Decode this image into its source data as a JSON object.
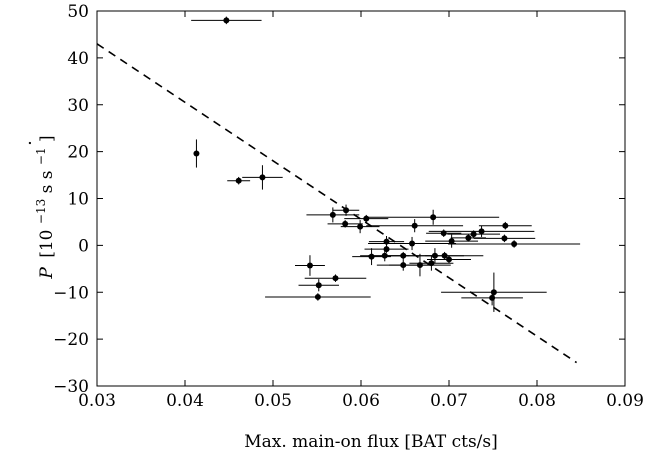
{
  "chart_data": {
    "type": "scatter",
    "title": "",
    "xlabel": "Max. main-on flux [BAT cts/s]",
    "ylabel": {
      "symbol": "P",
      "bracket_open": "[10",
      "exponent": "−13",
      "units": " s s",
      "units_exponent": "−1",
      "bracket_close": "]"
    },
    "xlim": [
      0.03,
      0.09
    ],
    "ylim": [
      -30,
      50
    ],
    "x_ticks": [
      "0.03",
      "0.04",
      "0.05",
      "0.06",
      "0.07",
      "0.08",
      "0.09"
    ],
    "x_tick_values": [
      0.03,
      0.04,
      0.05,
      0.06,
      0.07,
      0.08,
      0.09
    ],
    "y_ticks": [
      "−30",
      "−20",
      "−10",
      "0",
      "10",
      "20",
      "30",
      "40",
      "50"
    ],
    "y_tick_values": [
      -30,
      -20,
      -10,
      0,
      10,
      20,
      30,
      40,
      50
    ],
    "grid": false,
    "fit_line": {
      "style": "dashed",
      "x": [
        0.03,
        0.0845
      ],
      "y": [
        43.0,
        -25.0
      ]
    },
    "points": [
      {
        "x": 0.0447,
        "y": 48.0,
        "xerr": 0.004,
        "yerr": 0.8
      },
      {
        "x": 0.0413,
        "y": 19.6,
        "xerr": 0.0003,
        "yerr": 3.0
      },
      {
        "x": 0.0461,
        "y": 13.8,
        "xerr": 0.0013,
        "yerr": 0.8
      },
      {
        "x": 0.0488,
        "y": 14.5,
        "xerr": 0.0023,
        "yerr": 2.6
      },
      {
        "x": 0.0583,
        "y": 7.5,
        "xerr": 0.0015,
        "yerr": 1.2
      },
      {
        "x": 0.0568,
        "y": 6.5,
        "xerr": 0.003,
        "yerr": 1.6
      },
      {
        "x": 0.0582,
        "y": 4.6,
        "xerr": 0.002,
        "yerr": 0.8
      },
      {
        "x": 0.0599,
        "y": 4.0,
        "xerr": 0.0022,
        "yerr": 1.4
      },
      {
        "x": 0.0606,
        "y": 5.7,
        "xerr": 0.0025,
        "yerr": 0.8
      },
      {
        "x": 0.0682,
        "y": 6.0,
        "xerr": 0.0075,
        "yerr": 1.6
      },
      {
        "x": 0.0661,
        "y": 4.2,
        "xerr": 0.0055,
        "yerr": 1.4
      },
      {
        "x": 0.0764,
        "y": 4.2,
        "xerr": 0.003,
        "yerr": 0.8
      },
      {
        "x": 0.0737,
        "y": 3.0,
        "xerr": 0.006,
        "yerr": 1.2
      },
      {
        "x": 0.0694,
        "y": 2.6,
        "xerr": 0.002,
        "yerr": 0.8
      },
      {
        "x": 0.0728,
        "y": 2.4,
        "xerr": 0.003,
        "yerr": 0.8
      },
      {
        "x": 0.0722,
        "y": 1.6,
        "xerr": 0.002,
        "yerr": 0.8
      },
      {
        "x": 0.0763,
        "y": 1.5,
        "xerr": 0.0035,
        "yerr": 0.8
      },
      {
        "x": 0.0703,
        "y": 0.9,
        "xerr": 0.003,
        "yerr": 1.4
      },
      {
        "x": 0.0774,
        "y": 0.3,
        "xerr": 0.0075,
        "yerr": 0.8
      },
      {
        "x": 0.0629,
        "y": 0.8,
        "xerr": 0.002,
        "yerr": 1.2
      },
      {
        "x": 0.0658,
        "y": 0.4,
        "xerr": 0.005,
        "yerr": 1.4
      },
      {
        "x": 0.0629,
        "y": -0.8,
        "xerr": 0.0025,
        "yerr": 0.8
      },
      {
        "x": 0.0627,
        "y": -2.2,
        "xerr": 0.0028,
        "yerr": 1.2
      },
      {
        "x": 0.0612,
        "y": -2.4,
        "xerr": 0.0022,
        "yerr": 1.8
      },
      {
        "x": 0.0648,
        "y": -2.2,
        "xerr": 0.004,
        "yerr": 0.8
      },
      {
        "x": 0.0684,
        "y": -2.2,
        "xerr": 0.0055,
        "yerr": 1.6
      },
      {
        "x": 0.0695,
        "y": -2.2,
        "xerr": 0.0022,
        "yerr": 0.8
      },
      {
        "x": 0.07,
        "y": -3.0,
        "xerr": 0.0025,
        "yerr": 0.8
      },
      {
        "x": 0.0648,
        "y": -4.2,
        "xerr": 0.003,
        "yerr": 1.2
      },
      {
        "x": 0.0667,
        "y": -4.2,
        "xerr": 0.0035,
        "yerr": 2.4
      },
      {
        "x": 0.068,
        "y": -3.8,
        "xerr": 0.0025,
        "yerr": 1.6
      },
      {
        "x": 0.0542,
        "y": -4.3,
        "xerr": 0.0017,
        "yerr": 2.2
      },
      {
        "x": 0.0571,
        "y": -7.0,
        "xerr": 0.0035,
        "yerr": 0.8
      },
      {
        "x": 0.0552,
        "y": -8.5,
        "xerr": 0.0023,
        "yerr": 1.3
      },
      {
        "x": 0.0551,
        "y": -11.0,
        "xerr": 0.006,
        "yerr": 0.8
      },
      {
        "x": 0.0751,
        "y": -10.0,
        "xerr": 0.006,
        "yerr": 4.2
      },
      {
        "x": 0.0749,
        "y": -11.2,
        "xerr": 0.0035,
        "yerr": 1.6
      }
    ]
  }
}
